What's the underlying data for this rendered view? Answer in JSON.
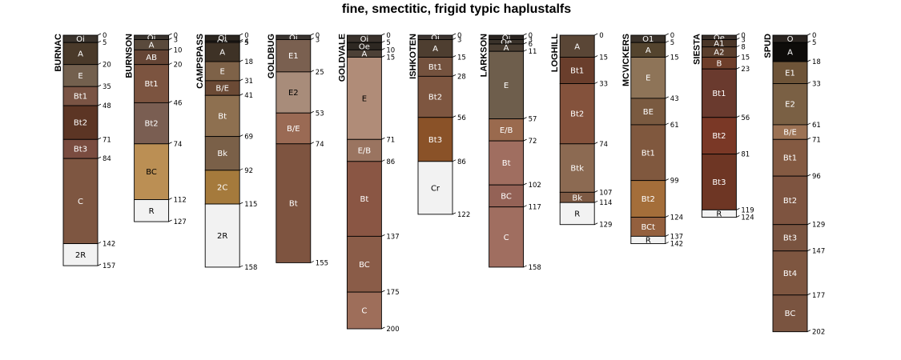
{
  "chart_data": {
    "type": "soil_profile_sketch",
    "title": "fine, smectitic, frigid typic haplustalfs",
    "depth_units": "cm",
    "max_depth": 202,
    "profiles": [
      {
        "name": "BURNAC",
        "horizons": [
          {
            "name": "Oi",
            "top": 0,
            "bottom": 5,
            "color": "#3a332c"
          },
          {
            "name": "A",
            "top": 5,
            "bottom": 20,
            "color": "#4a3a2a"
          },
          {
            "name": "E",
            "top": 20,
            "bottom": 35,
            "color": "#73604e"
          },
          {
            "name": "Bt1",
            "top": 35,
            "bottom": 48,
            "color": "#7a5444"
          },
          {
            "name": "Bt2",
            "top": 48,
            "bottom": 71,
            "color": "#5c3524"
          },
          {
            "name": "Bt3",
            "top": 71,
            "bottom": 84,
            "color": "#7a4c40"
          },
          {
            "name": "C",
            "top": 84,
            "bottom": 142,
            "color": "#7e5641"
          },
          {
            "name": "2R",
            "top": 142,
            "bottom": 157,
            "color": "#f2f2f2"
          }
        ]
      },
      {
        "name": "BURNSON",
        "horizons": [
          {
            "name": "Oi",
            "top": 0,
            "bottom": 3,
            "color": "#3a342e"
          },
          {
            "name": "A",
            "top": 3,
            "bottom": 10,
            "color": "#5a4a3c"
          },
          {
            "name": "AB",
            "top": 10,
            "bottom": 20,
            "color": "#654535"
          },
          {
            "name": "Bt1",
            "top": 20,
            "bottom": 46,
            "color": "#7c5440"
          },
          {
            "name": "Bt2",
            "top": 46,
            "bottom": 74,
            "color": "#7a5e52"
          },
          {
            "name": "BC",
            "top": 74,
            "bottom": 112,
            "color": "#bb8f54"
          },
          {
            "name": "R",
            "top": 112,
            "bottom": 127,
            "color": "#f2f2f2"
          }
        ]
      },
      {
        "name": "CAMPSPASS",
        "horizons": [
          {
            "name": "Oi",
            "top": 0,
            "bottom": 4,
            "color": "#2c2620"
          },
          {
            "name": "Oa",
            "top": 4,
            "bottom": 5,
            "color": "#3c342c"
          },
          {
            "name": "A",
            "top": 5,
            "bottom": 18,
            "color": "#3e3226"
          },
          {
            "name": "E",
            "top": 18,
            "bottom": 31,
            "color": "#7e6248"
          },
          {
            "name": "B/E",
            "top": 31,
            "bottom": 41,
            "color": "#6b4a35"
          },
          {
            "name": "Bt",
            "top": 41,
            "bottom": 69,
            "color": "#8e7050"
          },
          {
            "name": "Bk",
            "top": 69,
            "bottom": 92,
            "color": "#7a6048"
          },
          {
            "name": "2C",
            "top": 92,
            "bottom": 115,
            "color": "#a57a3c"
          },
          {
            "name": "2R",
            "top": 115,
            "bottom": 158,
            "color": "#f2f2f2"
          }
        ]
      },
      {
        "name": "GOLDBUG",
        "horizons": [
          {
            "name": "Oi",
            "top": 0,
            "bottom": 3,
            "color": "#3a3430"
          },
          {
            "name": "E1",
            "top": 3,
            "bottom": 25,
            "color": "#7a6050"
          },
          {
            "name": "E2",
            "top": 25,
            "bottom": 53,
            "color": "#a88c7a"
          },
          {
            "name": "B/E",
            "top": 53,
            "bottom": 74,
            "color": "#9a6a54"
          },
          {
            "name": "Bt",
            "top": 74,
            "bottom": 155,
            "color": "#7e5440"
          }
        ]
      },
      {
        "name": "GOLDVALE",
        "horizons": [
          {
            "name": "Oi",
            "top": 0,
            "bottom": 5,
            "color": "#3a322c"
          },
          {
            "name": "Oe",
            "top": 5,
            "bottom": 10,
            "color": "#2e2822"
          },
          {
            "name": "A",
            "top": 10,
            "bottom": 15,
            "color": "#4c4036"
          },
          {
            "name": "E",
            "top": 15,
            "bottom": 71,
            "color": "#b08c78"
          },
          {
            "name": "E/B",
            "top": 71,
            "bottom": 86,
            "color": "#9a7460"
          },
          {
            "name": "Bt",
            "top": 86,
            "bottom": 137,
            "color": "#8a5644"
          },
          {
            "name": "BC",
            "top": 137,
            "bottom": 175,
            "color": "#8a5c48"
          },
          {
            "name": "C",
            "top": 175,
            "bottom": 200,
            "color": "#9e6e5a"
          }
        ]
      },
      {
        "name": "ISHKOTEN",
        "horizons": [
          {
            "name": "Oi",
            "top": 0,
            "bottom": 3,
            "color": "#3c3430"
          },
          {
            "name": "A",
            "top": 3,
            "bottom": 15,
            "color": "#4e3e30"
          },
          {
            "name": "Bt1",
            "top": 15,
            "bottom": 28,
            "color": "#74523e"
          },
          {
            "name": "Bt2",
            "top": 28,
            "bottom": 56,
            "color": "#7e5640"
          },
          {
            "name": "Bt3",
            "top": 56,
            "bottom": 86,
            "color": "#8a5228"
          },
          {
            "name": "Cr",
            "top": 86,
            "bottom": 122,
            "color": "#f2f2f2"
          }
        ]
      },
      {
        "name": "LARKSON",
        "horizons": [
          {
            "name": "Oi",
            "top": 0,
            "bottom": 3,
            "color": "#2a2420"
          },
          {
            "name": "Oe",
            "top": 3,
            "bottom": 6,
            "color": "#3a322a"
          },
          {
            "name": "A",
            "top": 6,
            "bottom": 11,
            "color": "#4a3e32"
          },
          {
            "name": "E",
            "top": 11,
            "bottom": 57,
            "color": "#6e5e4c"
          },
          {
            "name": "E/B",
            "top": 57,
            "bottom": 72,
            "color": "#9a6a4e"
          },
          {
            "name": "Bt",
            "top": 72,
            "bottom": 102,
            "color": "#a06e60"
          },
          {
            "name": "BC",
            "top": 102,
            "bottom": 117,
            "color": "#946256"
          },
          {
            "name": "C",
            "top": 117,
            "bottom": 158,
            "color": "#a06e60"
          }
        ]
      },
      {
        "name": "LOGHILL",
        "horizons": [
          {
            "name": "A",
            "top": 0,
            "bottom": 15,
            "color": "#5a4636"
          },
          {
            "name": "Bt1",
            "top": 15,
            "bottom": 33,
            "color": "#6a3e2c"
          },
          {
            "name": "Bt2",
            "top": 33,
            "bottom": 74,
            "color": "#84523c"
          },
          {
            "name": "Btk",
            "top": 74,
            "bottom": 107,
            "color": "#8c6a52"
          },
          {
            "name": "Bk",
            "top": 107,
            "bottom": 114,
            "color": "#7e5a44"
          },
          {
            "name": "R",
            "top": 114,
            "bottom": 129,
            "color": "#f2f2f2"
          }
        ]
      },
      {
        "name": "MCVICKERS",
        "horizons": [
          {
            "name": "O1",
            "top": 0,
            "bottom": 5,
            "color": "#3a322a"
          },
          {
            "name": "A",
            "top": 5,
            "bottom": 15,
            "color": "#54442e"
          },
          {
            "name": "E",
            "top": 15,
            "bottom": 43,
            "color": "#8e7458"
          },
          {
            "name": "BE",
            "top": 43,
            "bottom": 61,
            "color": "#7a5a40"
          },
          {
            "name": "Bt1",
            "top": 61,
            "bottom": 99,
            "color": "#80583e"
          },
          {
            "name": "Bt2",
            "top": 99,
            "bottom": 124,
            "color": "#a46e3a"
          },
          {
            "name": "BCt",
            "top": 124,
            "bottom": 137,
            "color": "#94603e"
          },
          {
            "name": "R",
            "top": 137,
            "bottom": 142,
            "color": "#f2f2f2"
          }
        ]
      },
      {
        "name": "SIESTA",
        "horizons": [
          {
            "name": "Oe",
            "top": 0,
            "bottom": 3,
            "color": "#3a302a"
          },
          {
            "name": "A1",
            "top": 3,
            "bottom": 8,
            "color": "#4a3628"
          },
          {
            "name": "A2",
            "top": 8,
            "bottom": 15,
            "color": "#5a3e2c"
          },
          {
            "name": "B",
            "top": 15,
            "bottom": 23,
            "color": "#6e3e2a"
          },
          {
            "name": "Bt1",
            "top": 23,
            "bottom": 56,
            "color": "#6a3a2e"
          },
          {
            "name": "Bt2",
            "top": 56,
            "bottom": 81,
            "color": "#7a3826"
          },
          {
            "name": "Bt3",
            "top": 81,
            "bottom": 119,
            "color": "#6e3624"
          },
          {
            "name": "R",
            "top": 119,
            "bottom": 124,
            "color": "#f2f2f2"
          }
        ]
      },
      {
        "name": "SPUD",
        "horizons": [
          {
            "name": "O",
            "top": 0,
            "bottom": 5,
            "color": "#2a2420"
          },
          {
            "name": "A",
            "top": 5,
            "bottom": 18,
            "color": "#0e0c0a"
          },
          {
            "name": "E1",
            "top": 18,
            "bottom": 33,
            "color": "#6e5438"
          },
          {
            "name": "E2",
            "top": 33,
            "bottom": 61,
            "color": "#7a6044"
          },
          {
            "name": "B/E",
            "top": 61,
            "bottom": 71,
            "color": "#9c7254"
          },
          {
            "name": "Bt1",
            "top": 71,
            "bottom": 96,
            "color": "#845a42"
          },
          {
            "name": "Bt2",
            "top": 96,
            "bottom": 129,
            "color": "#7e5440"
          },
          {
            "name": "Bt3",
            "top": 129,
            "bottom": 147,
            "color": "#7a5440"
          },
          {
            "name": "Bt4",
            "top": 147,
            "bottom": 177,
            "color": "#7e5640"
          },
          {
            "name": "BC",
            "top": 177,
            "bottom": 202,
            "color": "#7a5440"
          }
        ]
      }
    ]
  }
}
